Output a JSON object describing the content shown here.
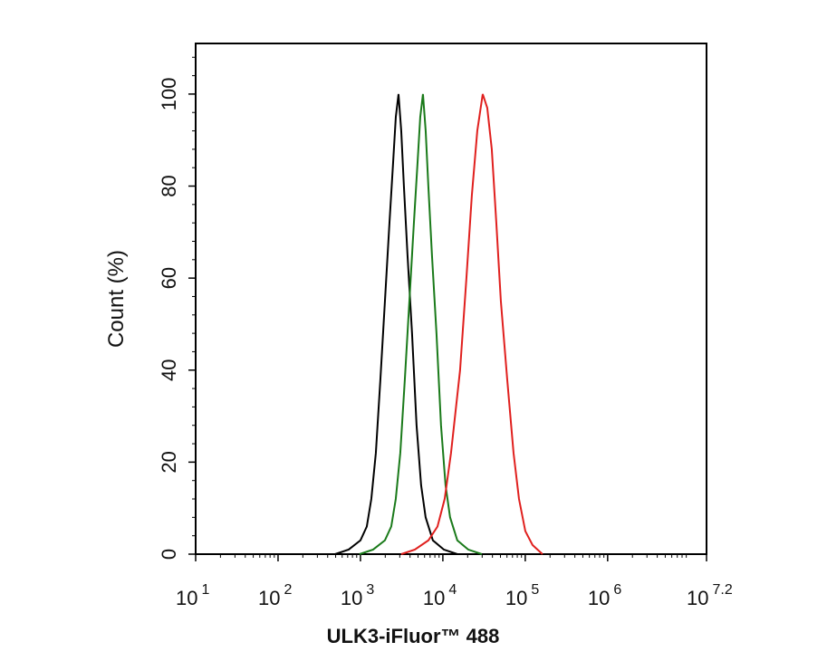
{
  "chart_data": {
    "type": "line",
    "x_label": "ULK3-iFluor™ 488",
    "y_label": "Count  (%)",
    "xscale": "log",
    "xlim": [
      10,
      15848931.92
    ],
    "ylim": [
      0,
      111
    ],
    "xticks": [
      {
        "value": 10,
        "label": "10",
        "exponent": "1"
      },
      {
        "value": 100,
        "label": "10",
        "exponent": "2"
      },
      {
        "value": 1000,
        "label": "10",
        "exponent": "3"
      },
      {
        "value": 10000,
        "label": "10",
        "exponent": "4"
      },
      {
        "value": 100000,
        "label": "10",
        "exponent": "5"
      },
      {
        "value": 1000000,
        "label": "10",
        "exponent": "6"
      },
      {
        "value": 15848931.92,
        "label": "10",
        "exponent": "7.2"
      }
    ],
    "yticks": [
      0,
      20,
      40,
      60,
      80,
      100
    ],
    "series": [
      {
        "color": "#000000",
        "x": [
          492,
          719,
          1000,
          1194,
          1355,
          1538,
          1746,
          1982,
          2249,
          2489,
          2685,
          2897,
          3126,
          3367,
          3725,
          4227,
          4797,
          5445,
          6180,
          7568,
          10260,
          15000
        ],
        "values": [
          0,
          1,
          3,
          6,
          12,
          22,
          38,
          55,
          72,
          85,
          95,
          100,
          92,
          80,
          65,
          48,
          28,
          15,
          8,
          3,
          1,
          0
        ]
      },
      {
        "color": "#1a7a1a",
        "x": [
          974,
          1424,
          1980,
          2364,
          2683,
          3045,
          3457,
          3924,
          4453,
          4928,
          5316,
          5736,
          6189,
          6667,
          7376,
          8369,
          9498,
          10780,
          12240,
          14980,
          20310,
          29700
        ],
        "values": [
          0,
          1,
          3,
          6,
          12,
          22,
          38,
          55,
          72,
          85,
          95,
          100,
          92,
          80,
          65,
          48,
          28,
          15,
          8,
          3,
          1,
          0
        ]
      },
      {
        "color": "#e0201e",
        "x": [
          3126,
          4571,
          6683,
          8610,
          10520,
          12560,
          16180,
          19320,
          22490,
          26180,
          30480,
          34590,
          39260,
          44560,
          50580,
          60390,
          72110,
          83950,
          100200,
          122500,
          161800
        ],
        "values": [
          0,
          1,
          3,
          6,
          12,
          22,
          40,
          60,
          78,
          92,
          100,
          97,
          88,
          72,
          55,
          38,
          22,
          12,
          5,
          2,
          0
        ]
      }
    ]
  }
}
